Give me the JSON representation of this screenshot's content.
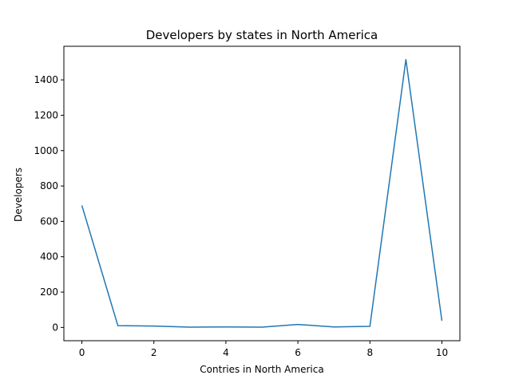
{
  "chart_data": {
    "type": "line",
    "title": "Developers by states in North America",
    "xlabel": "Contries in North America",
    "ylabel": "Developers",
    "x": [
      0,
      1,
      2,
      3,
      4,
      5,
      6,
      7,
      8,
      9,
      10
    ],
    "series": [
      {
        "values": [
          690,
          10,
          8,
          2,
          3,
          2,
          17,
          3,
          6,
          1515,
          38
        ]
      }
    ],
    "xlim": [
      -0.5,
      10.5
    ],
    "ylim": [
      -75,
      1590
    ],
    "xticks": [
      0,
      2,
      4,
      6,
      8,
      10
    ],
    "yticks": [
      0,
      200,
      400,
      600,
      800,
      1000,
      1200,
      1400
    ],
    "grid": false,
    "legend": "none",
    "colors": {
      "line": "#1f77b4",
      "axes": "#000000",
      "background": "#ffffff"
    }
  }
}
